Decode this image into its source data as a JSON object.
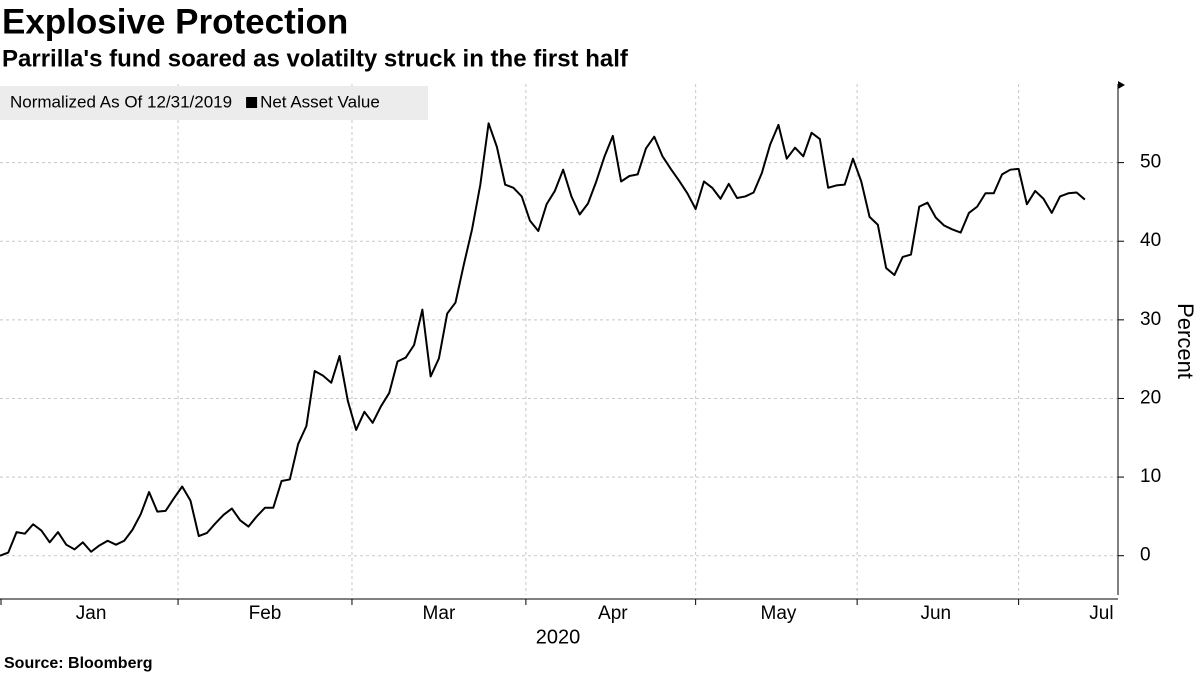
{
  "chart_data": {
    "type": "line",
    "title": "Explosive Protection",
    "subtitle": "Parrilla's fund soared as volatilty struck in the first half",
    "legend_title": "Normalized As Of 12/31/2019",
    "legend": "top-left",
    "xlabel": "2020",
    "ylabel": "Percent",
    "source": "Source: Bloomberg",
    "categories": [
      null,
      null,
      null,
      null,
      null,
      null,
      null,
      null,
      null,
      null,
      null,
      "Jan",
      null,
      null,
      null,
      null,
      null,
      null,
      null,
      null,
      null,
      null,
      null,
      null,
      null,
      null,
      null,
      null,
      null,
      null,
      null,
      null,
      "Feb",
      null,
      null,
      null,
      null,
      null,
      null,
      null,
      null,
      null,
      null,
      null,
      null,
      null,
      null,
      null,
      null,
      null,
      null,
      null,
      null,
      "Mar",
      null,
      null,
      null,
      null,
      null,
      null,
      null,
      null,
      null,
      null,
      null,
      null,
      null,
      null,
      null,
      null,
      null,
      null,
      null,
      null,
      "Apr",
      null,
      null,
      null,
      null,
      null,
      null,
      null,
      null,
      null,
      null,
      null,
      null,
      null,
      null,
      null,
      null,
      null,
      null,
      null,
      "May",
      null,
      null,
      null,
      null,
      null,
      null,
      null,
      null,
      null,
      null,
      null,
      null,
      null,
      null,
      null,
      null,
      null,
      null,
      "Jun",
      null,
      null,
      null,
      null,
      null,
      null,
      null,
      null,
      null,
      null,
      null,
      null,
      null,
      null,
      null,
      null,
      null,
      null,
      null,
      "Jul",
      null
    ],
    "series": [
      {
        "name": "Net Asset Value",
        "color": "#000000",
        "values": [
          0,
          0.4,
          3,
          2.8,
          4,
          3.2,
          1.7,
          3,
          1.4,
          0.8,
          1.7,
          0.5,
          1.3,
          1.9,
          1.4,
          1.9,
          3.3,
          5.3,
          8.1,
          5.6,
          5.7,
          7.3,
          8.8,
          7,
          2.5,
          2.9,
          4.1,
          5.2,
          6,
          4.5,
          3.7,
          5,
          6.1,
          6.1,
          9.5,
          9.7,
          14.2,
          16.5,
          23.5,
          22.9,
          22,
          25.4,
          19.7,
          16,
          18.3,
          16.9,
          19,
          20.7,
          24.7,
          25.2,
          26.8,
          31.3,
          22.8,
          25.1,
          30.8,
          32.2,
          37,
          41.5,
          47.2,
          55,
          52,
          47.2,
          46.8,
          45.7,
          42.6,
          41.3,
          44.7,
          46.4,
          49.1,
          45.7,
          43.4,
          44.8,
          47.6,
          50.8,
          53.4,
          47.6,
          48.3,
          48.5,
          51.8,
          53.3,
          50.8,
          49.2,
          47.7,
          46.1,
          44.1,
          47.6,
          46.8,
          45.4,
          47.3,
          45.5,
          45.7,
          46.2,
          48.7,
          52.3,
          54.8,
          50.5,
          51.9,
          50.8,
          53.8,
          53,
          46.8,
          47.1,
          47.2,
          50.5,
          47.6,
          43.1,
          42.1,
          36.6,
          35.7,
          38,
          38.3,
          44.4,
          44.9,
          43,
          42,
          41.5,
          41.1,
          43.6,
          44.4,
          46.1,
          46.1,
          48.5,
          49.1,
          49.2,
          44.7,
          46.4,
          45.4,
          43.6,
          45.7,
          46.1,
          46.2,
          45.3,
          null,
          null,
          null
        ]
      }
    ],
    "ylim": [
      -5,
      60
    ],
    "yticks": [
      0,
      10,
      20,
      30,
      40,
      50
    ],
    "grid": true
  }
}
